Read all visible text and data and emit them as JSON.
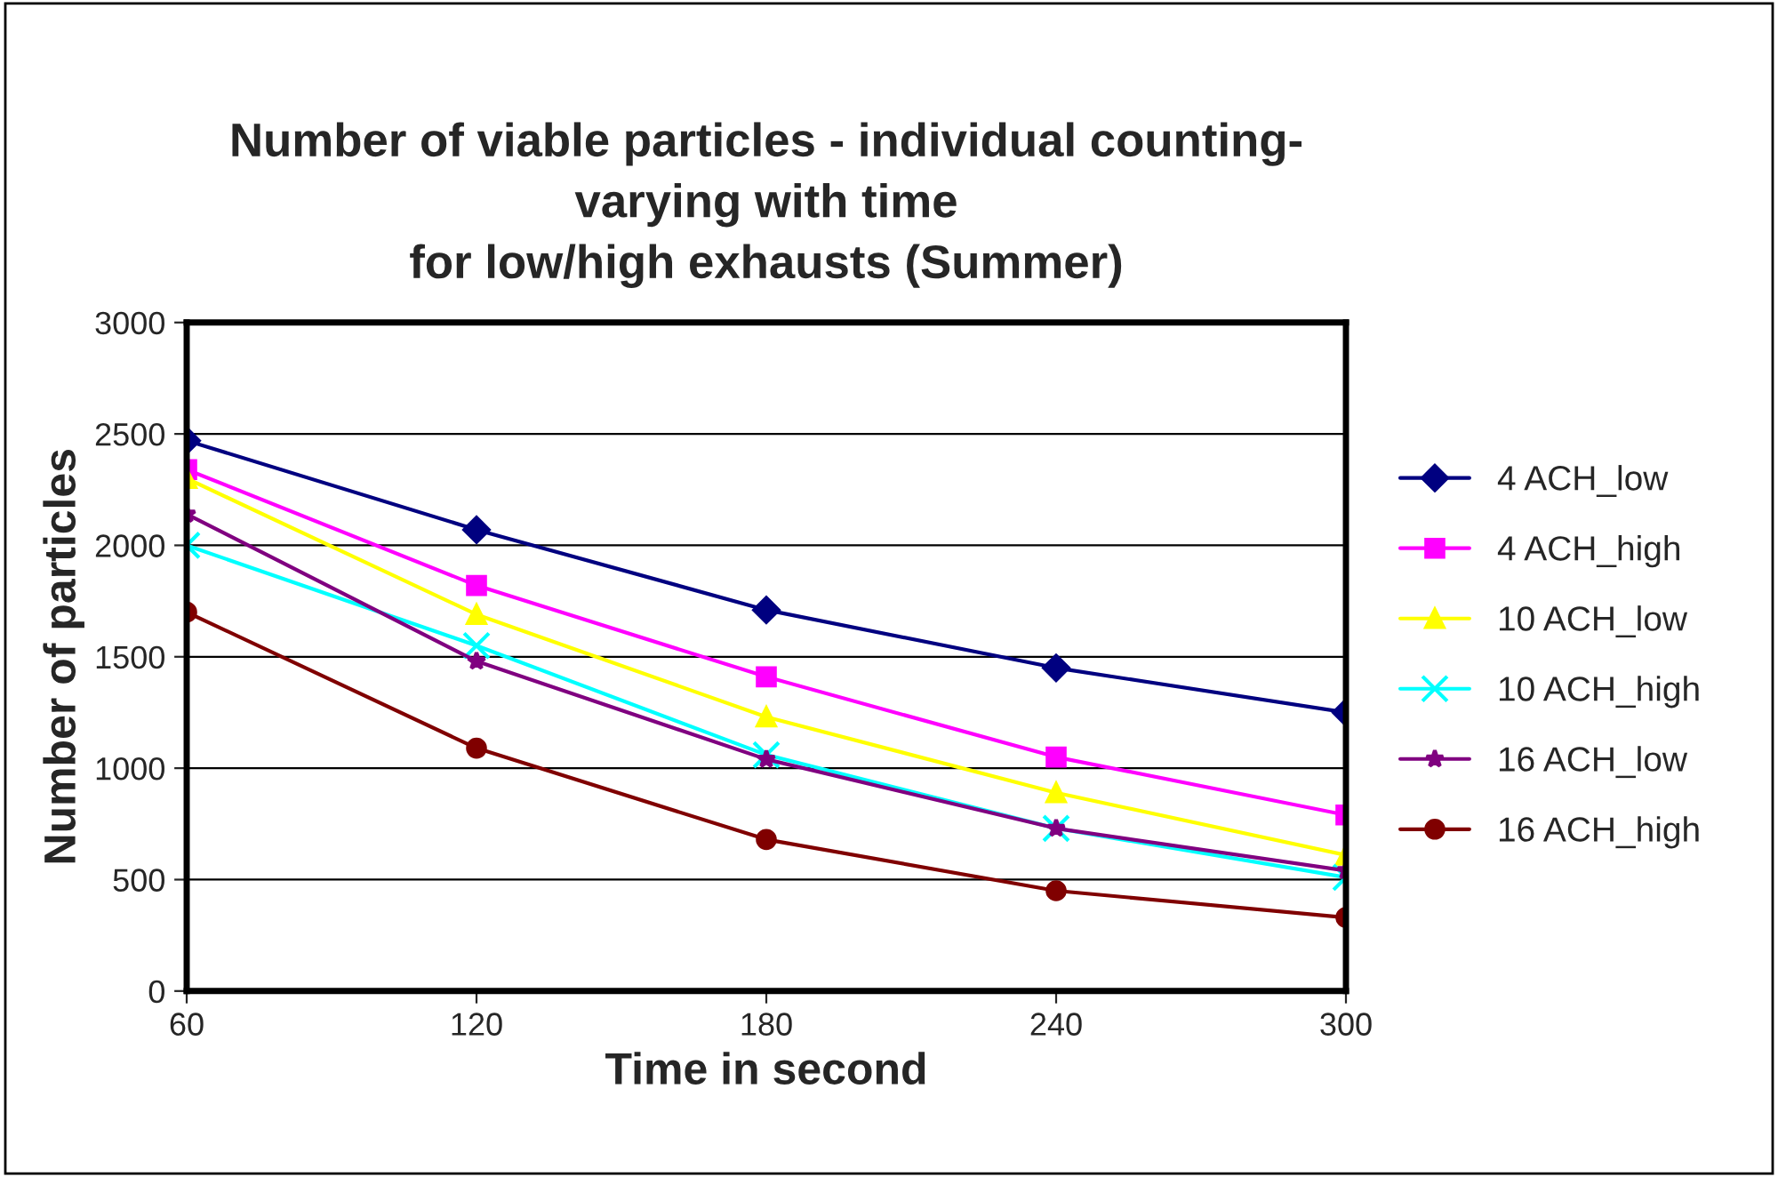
{
  "chart_data": {
    "type": "line",
    "title": "Number of viable particles - individual counting-\nvarying with time\nfor low/high exhausts (Summer)",
    "xlabel": "Time in second",
    "ylabel": "Number of particles",
    "x": [
      60,
      120,
      180,
      240,
      300
    ],
    "xlim": [
      60,
      300
    ],
    "xticks": [
      60,
      120,
      180,
      240,
      300
    ],
    "ylim": [
      0,
      3000
    ],
    "yticks": [
      0,
      500,
      1000,
      1500,
      2000,
      2500,
      3000
    ],
    "grid": "y",
    "legend": "right",
    "series": [
      {
        "name": "4 ACH_low",
        "color": "#000080",
        "marker": "diamond",
        "values": [
          2470,
          2070,
          1710,
          1450,
          1250
        ]
      },
      {
        "name": "4 ACH_high",
        "color": "#ff00ff",
        "marker": "square",
        "values": [
          2340,
          1820,
          1410,
          1050,
          790
        ]
      },
      {
        "name": "10 ACH_low",
        "color": "#ffff00",
        "marker": "triangle",
        "values": [
          2300,
          1690,
          1230,
          890,
          610
        ]
      },
      {
        "name": "10 ACH_high",
        "color": "#00ffff",
        "marker": "cross",
        "values": [
          2000,
          1550,
          1060,
          730,
          510
        ]
      },
      {
        "name": "16 ACH_low",
        "color": "#800080",
        "marker": "star",
        "values": [
          2140,
          1480,
          1040,
          730,
          540
        ]
      },
      {
        "name": "16 ACH_high",
        "color": "#800000",
        "marker": "circle",
        "values": [
          1700,
          1090,
          680,
          450,
          330
        ]
      }
    ]
  }
}
